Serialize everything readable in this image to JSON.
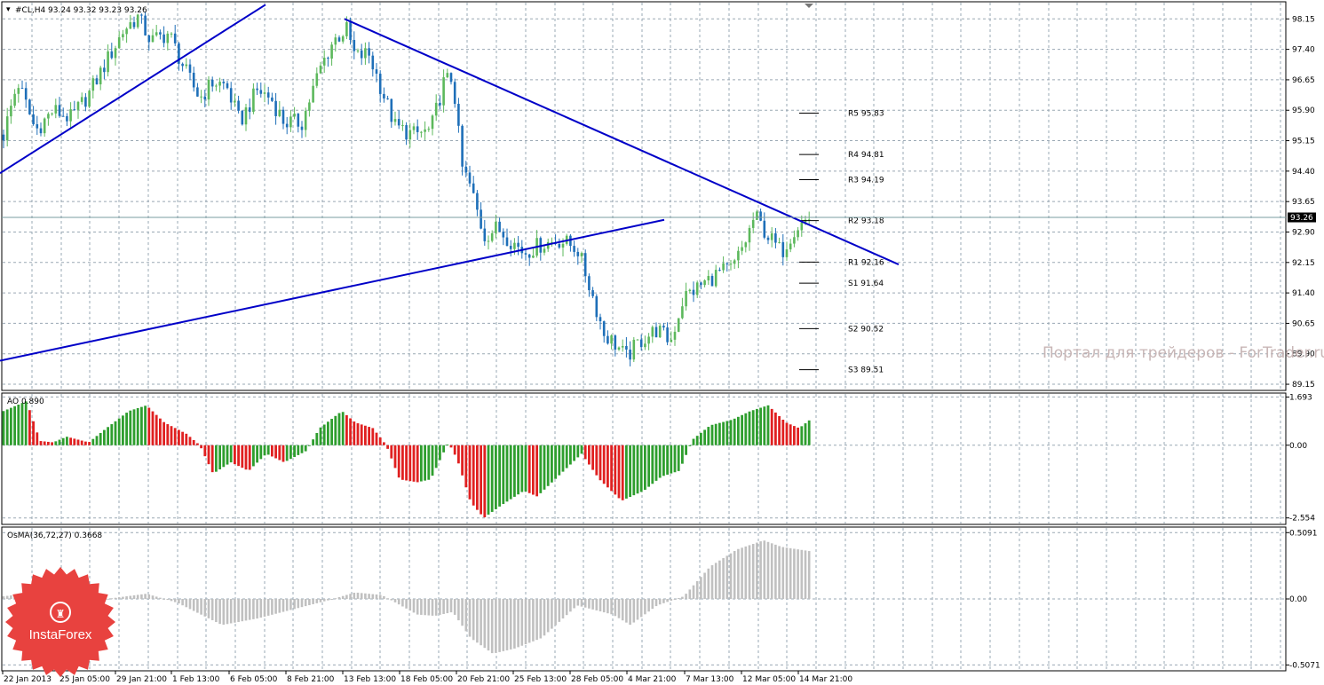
{
  "main": {
    "header": "#CL,H4  93.24 93.32 93.23 93.26",
    "current_price": "93.26",
    "y_ticks": [
      "98.15",
      "97.40",
      "96.65",
      "95.90",
      "95.15",
      "94.40",
      "93.65",
      "92.90",
      "92.15",
      "91.40",
      "90.65",
      "89.90",
      "89.15"
    ],
    "y_range": [
      89.02,
      98.55
    ],
    "pivots": [
      {
        "label": "R5 95.83",
        "value": 95.83
      },
      {
        "label": "R4 94.81",
        "value": 94.81
      },
      {
        "label": "R3 94.19",
        "value": 94.19
      },
      {
        "label": "R2 93.18",
        "value": 93.18
      },
      {
        "label": "R1 92.16",
        "value": 92.16
      },
      {
        "label": "S1 91.64",
        "value": 91.64
      },
      {
        "label": "S2 90.52",
        "value": 90.52
      },
      {
        "label": "S3 89.51",
        "value": 89.51
      }
    ],
    "trendlines": [
      {
        "from": [
          0,
          94.35
        ],
        "to": [
          299,
          98.5
        ]
      },
      {
        "from": [
          0,
          89.73
        ],
        "to": [
          748,
          93.2
        ]
      },
      {
        "from": [
          388,
          98.15
        ],
        "to": [
          1012,
          92.1
        ]
      }
    ],
    "watermark": "Портал для трейдеров - ForTrader.ru"
  },
  "ao": {
    "header": "AO 0.890",
    "y_ticks": [
      "1.693",
      "0.00",
      "-2.554"
    ],
    "y_range": [
      -2.75,
      1.8
    ]
  },
  "osma": {
    "header": "OsMA(36,72,27) 0.3668",
    "y_ticks": [
      "0.5091",
      "0.00",
      "-0.5071"
    ],
    "y_range": [
      -0.545,
      0.545
    ]
  },
  "x_ticks": [
    "22 Jan 2013",
    "25 Jan 05:00",
    "29 Jan 21:00",
    "1 Feb 13:00",
    "6 Feb 05:00",
    "8 Feb 21:00",
    "13 Feb 13:00",
    "18 Feb 05:00",
    "20 Feb 21:00",
    "25 Feb 13:00",
    "28 Feb 05:00",
    "4 Mar 21:00",
    "7 Mar 13:00",
    "12 Mar 05:00",
    "14 Mar 21:00"
  ],
  "logo": {
    "text": "InstaForex",
    "color": "#e8423f"
  },
  "colors": {
    "bull": "#2e9e2e",
    "bear": "#e02020",
    "candle_up": "#5cb85c",
    "candle_down": "#1e6fb8",
    "trend": "#0000c8",
    "osma": "#c0c0c0"
  }
}
